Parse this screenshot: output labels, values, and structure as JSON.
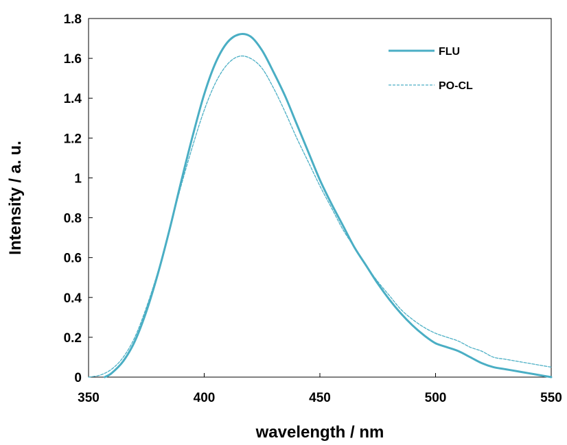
{
  "chart_data": {
    "type": "line",
    "title": "",
    "xlabel": "wavelength / nm",
    "ylabel": "Intensity / a. u.",
    "xlim": [
      350,
      550
    ],
    "ylim": [
      0,
      1.8
    ],
    "x_ticks": [
      350,
      400,
      450,
      500,
      550
    ],
    "y_ticks": [
      0,
      0.2,
      0.4,
      0.6,
      0.8,
      1,
      1.2,
      1.4,
      1.6,
      1.8
    ],
    "x_tick_labels": [
      "350",
      "400",
      "450",
      "500",
      "550"
    ],
    "y_tick_labels": [
      "0",
      "0.2",
      "0.4",
      "0.6",
      "0.8",
      "1",
      "1.2",
      "1.4",
      "1.6",
      "1.8"
    ],
    "grid": false,
    "legend_position": "top-right",
    "series": [
      {
        "name": "FLU",
        "color": "#4aaec4",
        "style": "solid",
        "x": [
          357,
          360,
          365,
          370,
          375,
          380,
          385,
          390,
          395,
          400,
          405,
          410,
          415,
          420,
          425,
          430,
          435,
          440,
          445,
          450,
          455,
          460,
          465,
          470,
          475,
          480,
          485,
          490,
          495,
          500,
          505,
          510,
          515,
          520,
          525,
          530,
          535,
          540,
          545,
          550
        ],
        "y": [
          0.0,
          0.02,
          0.08,
          0.18,
          0.33,
          0.52,
          0.74,
          0.98,
          1.21,
          1.42,
          1.58,
          1.68,
          1.72,
          1.71,
          1.64,
          1.53,
          1.41,
          1.27,
          1.13,
          0.99,
          0.87,
          0.76,
          0.65,
          0.56,
          0.47,
          0.39,
          0.32,
          0.26,
          0.21,
          0.17,
          0.15,
          0.13,
          0.1,
          0.07,
          0.05,
          0.04,
          0.03,
          0.02,
          0.01,
          0.0
        ]
      },
      {
        "name": "PO-CL",
        "color": "#4aaec4",
        "style": "dashed",
        "x": [
          350,
          355,
          360,
          365,
          370,
          375,
          380,
          385,
          390,
          395,
          400,
          405,
          410,
          415,
          420,
          425,
          430,
          435,
          440,
          445,
          450,
          455,
          460,
          465,
          470,
          475,
          480,
          485,
          490,
          495,
          500,
          505,
          510,
          515,
          520,
          525,
          530,
          535,
          540,
          545,
          550
        ],
        "y": [
          0.0,
          0.01,
          0.04,
          0.1,
          0.2,
          0.35,
          0.53,
          0.74,
          0.96,
          1.16,
          1.34,
          1.48,
          1.57,
          1.61,
          1.6,
          1.55,
          1.45,
          1.33,
          1.2,
          1.08,
          0.96,
          0.85,
          0.74,
          0.65,
          0.56,
          0.48,
          0.41,
          0.34,
          0.29,
          0.25,
          0.22,
          0.2,
          0.18,
          0.15,
          0.13,
          0.1,
          0.09,
          0.08,
          0.07,
          0.06,
          0.05
        ]
      }
    ]
  }
}
